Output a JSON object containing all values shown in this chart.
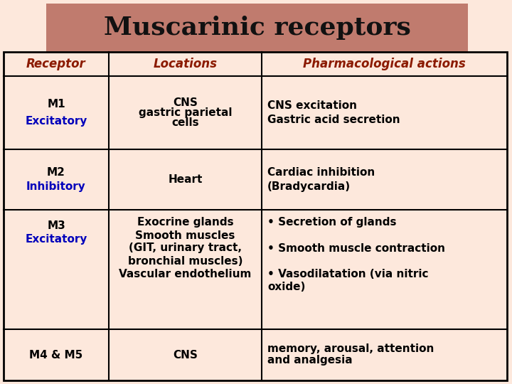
{
  "title": "Muscarinic receptors",
  "title_bg_color": "#c07b6e",
  "title_text_color": "#111111",
  "page_bg_color": "#fde8dc",
  "table_bg_color": "#fde8dc",
  "header_text_color": "#8b1a00",
  "body_text_color": "#000000",
  "blue_color": "#0000bb",
  "border_color": "#000000",
  "col1_header": "Receptor",
  "col2_header": "Locations",
  "col3_header": "Pharmacological actions",
  "rows": [
    {
      "col1_line1": "M1",
      "col1_line2": "Excitatory",
      "col1_line2_color": "#0000bb",
      "col2": "CNS\ngastric parietal\ncells",
      "col3_lines": [
        "CNS excitation",
        "Gastric acid secretion"
      ]
    },
    {
      "col1_line1": "M2",
      "col1_line2": "Inhibitory",
      "col1_line2_color": "#0000bb",
      "col2": "Heart",
      "col3_lines": [
        "Cardiac inhibition",
        "(Bradycardia)"
      ]
    },
    {
      "col1_line1": "M3",
      "col1_line2": "Excitatory",
      "col1_line2_color": "#0000bb",
      "col2": "Exocrine glands\nSmooth muscles\n(GIT, urinary tract,\nbronchial muscles)\nVascular endothelium",
      "col3_lines": [
        "• Secretion of glands",
        "",
        "• Smooth muscle contraction",
        "",
        "• Vasodilatation (via nitric",
        "oxide)"
      ]
    },
    {
      "col1_line1": "M4 & M5",
      "col1_line2": "",
      "col1_line2_color": "#000000",
      "col2": "CNS",
      "col3_lines": [
        "memory, arousal, attention",
        "and analgesia"
      ]
    }
  ],
  "figsize": [
    7.2,
    5.4
  ],
  "dpi": 100
}
